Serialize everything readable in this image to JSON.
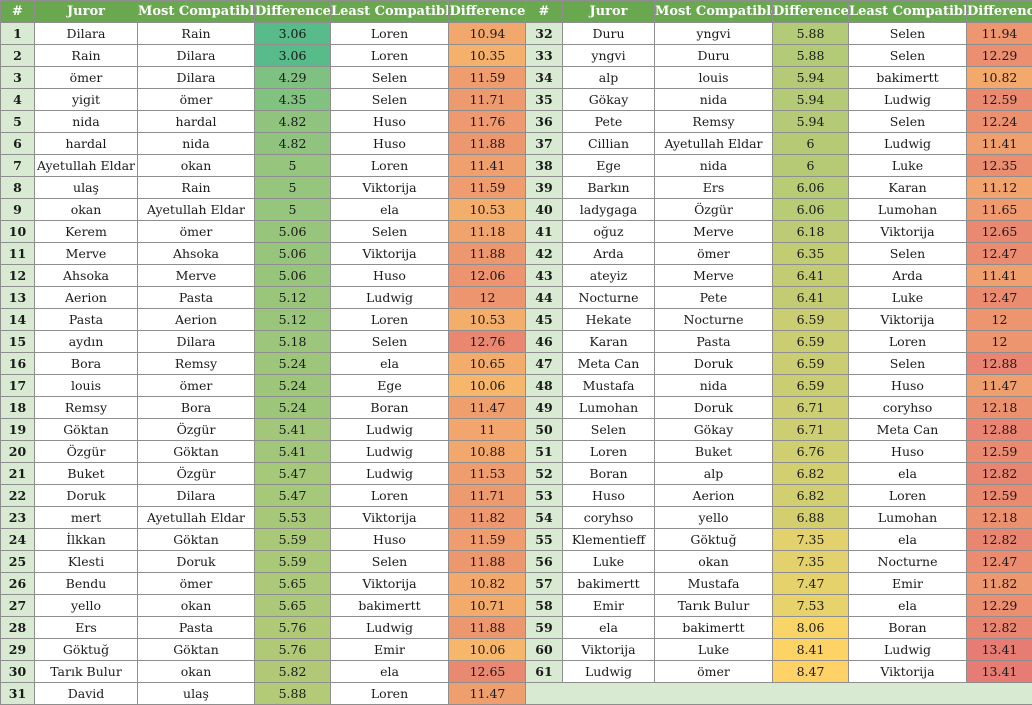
{
  "headers": [
    "#",
    "Juror",
    "Most Compatible",
    "Difference",
    "Least Compatible",
    "Difference"
  ],
  "colors": {
    "header_bg": "#6aa84f",
    "number_bg": "#d9ead3",
    "scale_low": "#57bb8a",
    "scale_mid": "#ffd666",
    "scale_high": "#e67c73"
  },
  "rows": [
    {
      "n": "1",
      "juror": "Dilara",
      "most": "Rain",
      "mdiff": "3.06",
      "least": "Loren",
      "ldiff": "10.94"
    },
    {
      "n": "2",
      "juror": "Rain",
      "most": "Dilara",
      "mdiff": "3.06",
      "least": "Loren",
      "ldiff": "10.35"
    },
    {
      "n": "3",
      "juror": "ömer",
      "most": "Dilara",
      "mdiff": "4.29",
      "least": "Selen",
      "ldiff": "11.59"
    },
    {
      "n": "4",
      "juror": "yigit",
      "most": "ömer",
      "mdiff": "4.35",
      "least": "Selen",
      "ldiff": "11.71"
    },
    {
      "n": "5",
      "juror": "nida",
      "most": "hardal",
      "mdiff": "4.82",
      "least": "Huso",
      "ldiff": "11.76"
    },
    {
      "n": "6",
      "juror": "hardal",
      "most": "nida",
      "mdiff": "4.82",
      "least": "Huso",
      "ldiff": "11.88"
    },
    {
      "n": "7",
      "juror": "Ayetullah Eldar",
      "most": "okan",
      "mdiff": "5",
      "least": "Loren",
      "ldiff": "11.41"
    },
    {
      "n": "8",
      "juror": "ulaş",
      "most": "Rain",
      "mdiff": "5",
      "least": "Viktorija",
      "ldiff": "11.59"
    },
    {
      "n": "9",
      "juror": "okan",
      "most": "Ayetullah Eldar",
      "mdiff": "5",
      "least": "ela",
      "ldiff": "10.53"
    },
    {
      "n": "10",
      "juror": "Kerem",
      "most": "ömer",
      "mdiff": "5.06",
      "least": "Selen",
      "ldiff": "11.18"
    },
    {
      "n": "11",
      "juror": "Merve",
      "most": "Ahsoka",
      "mdiff": "5.06",
      "least": "Viktorija",
      "ldiff": "11.88"
    },
    {
      "n": "12",
      "juror": "Ahsoka",
      "most": "Merve",
      "mdiff": "5.06",
      "least": "Huso",
      "ldiff": "12.06"
    },
    {
      "n": "13",
      "juror": "Aerion",
      "most": "Pasta",
      "mdiff": "5.12",
      "least": "Ludwig",
      "ldiff": "12"
    },
    {
      "n": "14",
      "juror": "Pasta",
      "most": "Aerion",
      "mdiff": "5.12",
      "least": "Loren",
      "ldiff": "10.53"
    },
    {
      "n": "15",
      "juror": "aydın",
      "most": "Dilara",
      "mdiff": "5.18",
      "least": "Selen",
      "ldiff": "12.76"
    },
    {
      "n": "16",
      "juror": "Bora",
      "most": "Remsy",
      "mdiff": "5.24",
      "least": "ela",
      "ldiff": "10.65"
    },
    {
      "n": "17",
      "juror": "louis",
      "most": "ömer",
      "mdiff": "5.24",
      "least": "Ege",
      "ldiff": "10.06"
    },
    {
      "n": "18",
      "juror": "Remsy",
      "most": "Bora",
      "mdiff": "5.24",
      "least": "Boran",
      "ldiff": "11.47"
    },
    {
      "n": "19",
      "juror": "Göktan",
      "most": "Özgür",
      "mdiff": "5.41",
      "least": "Ludwig",
      "ldiff": "11"
    },
    {
      "n": "20",
      "juror": "Özgür",
      "most": "Göktan",
      "mdiff": "5.41",
      "least": "Ludwig",
      "ldiff": "10.88"
    },
    {
      "n": "21",
      "juror": "Buket",
      "most": "Özgür",
      "mdiff": "5.47",
      "least": "Ludwig",
      "ldiff": "11.53"
    },
    {
      "n": "22",
      "juror": "Doruk",
      "most": "Dilara",
      "mdiff": "5.47",
      "least": "Loren",
      "ldiff": "11.71"
    },
    {
      "n": "23",
      "juror": "mert",
      "most": "Ayetullah Eldar",
      "mdiff": "5.53",
      "least": "Viktorija",
      "ldiff": "11.82"
    },
    {
      "n": "24",
      "juror": "İlkkan",
      "most": "Göktan",
      "mdiff": "5.59",
      "least": "Huso",
      "ldiff": "11.59"
    },
    {
      "n": "25",
      "juror": "Klesti",
      "most": "Doruk",
      "mdiff": "5.59",
      "least": "Selen",
      "ldiff": "11.88"
    },
    {
      "n": "26",
      "juror": "Bendu",
      "most": "ömer",
      "mdiff": "5.65",
      "least": "Viktorija",
      "ldiff": "10.82"
    },
    {
      "n": "27",
      "juror": "yello",
      "most": "okan",
      "mdiff": "5.65",
      "least": "bakimertt",
      "ldiff": "10.71"
    },
    {
      "n": "28",
      "juror": "Ers",
      "most": "Pasta",
      "mdiff": "5.76",
      "least": "Ludwig",
      "ldiff": "11.88"
    },
    {
      "n": "29",
      "juror": "Göktuğ",
      "most": "Göktan",
      "mdiff": "5.76",
      "least": "Emir",
      "ldiff": "10.06"
    },
    {
      "n": "30",
      "juror": "Tarık Bulur",
      "most": "okan",
      "mdiff": "5.82",
      "least": "ela",
      "ldiff": "12.65"
    },
    {
      "n": "31",
      "juror": "David",
      "most": "ulaş",
      "mdiff": "5.88",
      "least": "Loren",
      "ldiff": "11.47"
    },
    {
      "n": "32",
      "juror": "Duru",
      "most": "yngvi",
      "mdiff": "5.88",
      "least": "Selen",
      "ldiff": "11.94"
    },
    {
      "n": "33",
      "juror": "yngvi",
      "most": "Duru",
      "mdiff": "5.88",
      "least": "Selen",
      "ldiff": "12.29"
    },
    {
      "n": "34",
      "juror": "alp",
      "most": "louis",
      "mdiff": "5.94",
      "least": "bakimertt",
      "ldiff": "10.82"
    },
    {
      "n": "35",
      "juror": "Gökay",
      "most": "nida",
      "mdiff": "5.94",
      "least": "Ludwig",
      "ldiff": "12.59"
    },
    {
      "n": "36",
      "juror": "Pete",
      "most": "Remsy",
      "mdiff": "5.94",
      "least": "Selen",
      "ldiff": "12.24"
    },
    {
      "n": "37",
      "juror": "Cillian",
      "most": "Ayetullah Eldar",
      "mdiff": "6",
      "least": "Ludwig",
      "ldiff": "11.41"
    },
    {
      "n": "38",
      "juror": "Ege",
      "most": "nida",
      "mdiff": "6",
      "least": "Luke",
      "ldiff": "12.35"
    },
    {
      "n": "39",
      "juror": "Barkın",
      "most": "Ers",
      "mdiff": "6.06",
      "least": "Karan",
      "ldiff": "11.12"
    },
    {
      "n": "40",
      "juror": "ladygaga",
      "most": "Özgür",
      "mdiff": "6.06",
      "least": "Lumohan",
      "ldiff": "11.65"
    },
    {
      "n": "41",
      "juror": "oğuz",
      "most": "Merve",
      "mdiff": "6.18",
      "least": "Viktorija",
      "ldiff": "12.65"
    },
    {
      "n": "42",
      "juror": "Arda",
      "most": "ömer",
      "mdiff": "6.35",
      "least": "Selen",
      "ldiff": "12.47"
    },
    {
      "n": "43",
      "juror": "ateyiz",
      "most": "Merve",
      "mdiff": "6.41",
      "least": "Arda",
      "ldiff": "11.41"
    },
    {
      "n": "44",
      "juror": "Nocturne",
      "most": "Pete",
      "mdiff": "6.41",
      "least": "Luke",
      "ldiff": "12.47"
    },
    {
      "n": "45",
      "juror": "Hekate",
      "most": "Nocturne",
      "mdiff": "6.59",
      "least": "Viktorija",
      "ldiff": "12"
    },
    {
      "n": "46",
      "juror": "Karan",
      "most": "Pasta",
      "mdiff": "6.59",
      "least": "Loren",
      "ldiff": "12"
    },
    {
      "n": "47",
      "juror": "Meta Can",
      "most": "Doruk",
      "mdiff": "6.59",
      "least": "Selen",
      "ldiff": "12.88"
    },
    {
      "n": "48",
      "juror": "Mustafa",
      "most": "nida",
      "mdiff": "6.59",
      "least": "Huso",
      "ldiff": "11.47"
    },
    {
      "n": "49",
      "juror": "Lumohan",
      "most": "Doruk",
      "mdiff": "6.71",
      "least": "coryhso",
      "ldiff": "12.18"
    },
    {
      "n": "50",
      "juror": "Selen",
      "most": "Gökay",
      "mdiff": "6.71",
      "least": "Meta Can",
      "ldiff": "12.88"
    },
    {
      "n": "51",
      "juror": "Loren",
      "most": "Buket",
      "mdiff": "6.76",
      "least": "Huso",
      "ldiff": "12.59"
    },
    {
      "n": "52",
      "juror": "Boran",
      "most": "alp",
      "mdiff": "6.82",
      "least": "ela",
      "ldiff": "12.82"
    },
    {
      "n": "53",
      "juror": "Huso",
      "most": "Aerion",
      "mdiff": "6.82",
      "least": "Loren",
      "ldiff": "12.59"
    },
    {
      "n": "54",
      "juror": "coryhso",
      "most": "yello",
      "mdiff": "6.88",
      "least": "Lumohan",
      "ldiff": "12.18"
    },
    {
      "n": "55",
      "juror": "Klementieff",
      "most": "Göktuğ",
      "mdiff": "7.35",
      "least": "ela",
      "ldiff": "12.82"
    },
    {
      "n": "56",
      "juror": "Luke",
      "most": "okan",
      "mdiff": "7.35",
      "least": "Nocturne",
      "ldiff": "12.47"
    },
    {
      "n": "57",
      "juror": "bakimertt",
      "most": "Mustafa",
      "mdiff": "7.47",
      "least": "Emir",
      "ldiff": "11.82"
    },
    {
      "n": "58",
      "juror": "Emir",
      "most": "Tarık Bulur",
      "mdiff": "7.53",
      "least": "ela",
      "ldiff": "12.29"
    },
    {
      "n": "59",
      "juror": "ela",
      "most": "bakimertt",
      "mdiff": "8.06",
      "least": "Boran",
      "ldiff": "12.82"
    },
    {
      "n": "60",
      "juror": "Viktorija",
      "most": "Luke",
      "mdiff": "8.41",
      "least": "Ludwig",
      "ldiff": "13.41"
    },
    {
      "n": "61",
      "juror": "Ludwig",
      "most": "ömer",
      "mdiff": "8.47",
      "least": "Viktorija",
      "ldiff": "13.41"
    }
  ]
}
